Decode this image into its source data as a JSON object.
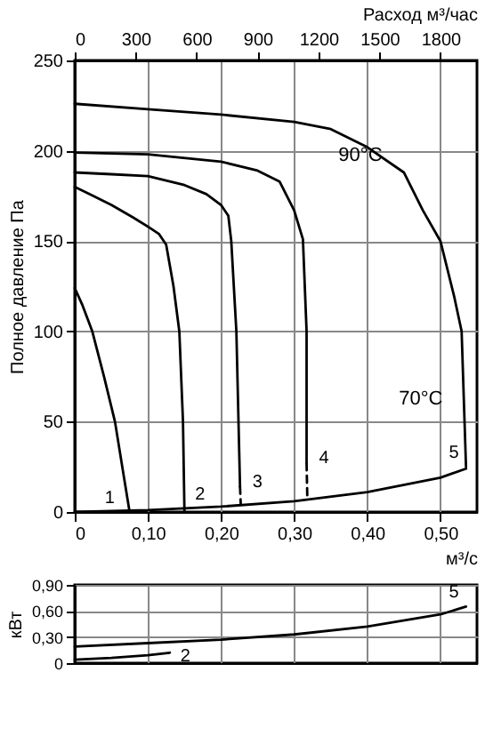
{
  "chart_data": [
    {
      "type": "line",
      "ylabel": "Полное давление Па",
      "xlabel": "м³/с",
      "x2label": "Расход м³/час",
      "xlim": [
        0,
        0.55
      ],
      "ylim": [
        0,
        250
      ],
      "xticks": [
        0,
        {
          "value": 0.1,
          "label": "0,10"
        },
        {
          "value": 0.2,
          "label": "0,20"
        },
        {
          "value": 0.3,
          "label": "0,30"
        },
        {
          "value": 0.4,
          "label": "0,40"
        },
        {
          "value": 0.5,
          "label": "0,50"
        }
      ],
      "yticks": [
        0,
        50,
        100,
        150,
        200,
        250
      ],
      "x2lim": [
        0,
        1980
      ],
      "x2ticks": [
        0,
        300,
        600,
        900,
        1200,
        1500,
        1800
      ],
      "grid": true,
      "line_style": "solid",
      "marker": "none",
      "series": [
        {
          "name": "1",
          "color": "#000000",
          "x": [
            0,
            0.01,
            0.024,
            0.04,
            0.055,
            0.065,
            0.075
          ],
          "values": [
            124,
            115,
            100,
            75,
            50,
            25,
            0
          ]
        },
        {
          "name": "2",
          "color": "#000000",
          "x": [
            0,
            0.02,
            0.05,
            0.08,
            0.1,
            0.115,
            0.125,
            0.135,
            0.143,
            0.148,
            0.15
          ],
          "values": [
            180,
            176,
            170,
            163,
            158,
            154,
            148,
            125,
            100,
            50,
            0
          ]
        },
        {
          "name": "3",
          "color": "#000000",
          "x": [
            0,
            0.05,
            0.1,
            0.15,
            0.18,
            0.2,
            0.21,
            0.214,
            0.221,
            0.226
          ],
          "values": [
            188,
            187,
            186,
            181,
            176,
            170,
            164,
            150,
            100,
            14
          ]
        },
        {
          "name": "4",
          "color": "#000000",
          "x": [
            0,
            0.1,
            0.2,
            0.25,
            0.28,
            0.3,
            0.312,
            0.317,
            0.317
          ],
          "values": [
            199,
            198,
            194,
            189,
            183,
            167,
            151,
            100,
            27
          ]
        },
        {
          "name": "5",
          "color": "#000000",
          "x": [
            0,
            0.1,
            0.2,
            0.3,
            0.35,
            0.4,
            0.45,
            0.476,
            0.5,
            0.519,
            0.529,
            0.533,
            0.535
          ],
          "values": [
            226,
            223,
            220,
            216,
            212,
            202,
            188,
            167,
            150,
            119,
            100,
            50,
            25
          ]
        },
        {
          "color": "#000000",
          "line_style": "dashed",
          "x": [
            0.226,
            0.227
          ],
          "values": [
            14,
            4
          ]
        },
        {
          "color": "#000000",
          "line_style": "dashed",
          "x": [
            0.317,
            0.318
          ],
          "values": [
            27,
            8
          ]
        },
        {
          "color": "#000000",
          "x": [
            0,
            0.1,
            0.15,
            0.2,
            0.3,
            0.4,
            0.5,
            0.535
          ],
          "values": [
            0,
            1,
            2,
            3,
            6,
            11,
            19,
            24
          ]
        }
      ],
      "annotations": [
        "90°C",
        "70°C"
      ]
    },
    {
      "type": "line",
      "ylabel": "кВт",
      "xlim": [
        0,
        0.55
      ],
      "ylim": [
        0,
        0.9
      ],
      "xticks": [
        0,
        0.1,
        0.2,
        0.3,
        0.4,
        0.5
      ],
      "yticks": [
        0,
        {
          "value": 0.3,
          "label": "0,30"
        },
        {
          "value": 0.6,
          "label": "0,60"
        },
        {
          "value": 0.9,
          "label": "0,90"
        }
      ],
      "tick_labels": "y",
      "grid": true,
      "line_style": "solid",
      "marker": "none",
      "series": [
        {
          "name": "5",
          "color": "#000000",
          "x": [
            0,
            0.1,
            0.2,
            0.3,
            0.4,
            0.5,
            0.535
          ],
          "values": [
            0.19,
            0.23,
            0.27,
            0.33,
            0.42,
            0.56,
            0.65
          ]
        },
        {
          "name": "2",
          "color": "#000000",
          "x": [
            0,
            0.05,
            0.1,
            0.13
          ],
          "values": [
            0.04,
            0.06,
            0.09,
            0.12
          ]
        }
      ]
    }
  ]
}
